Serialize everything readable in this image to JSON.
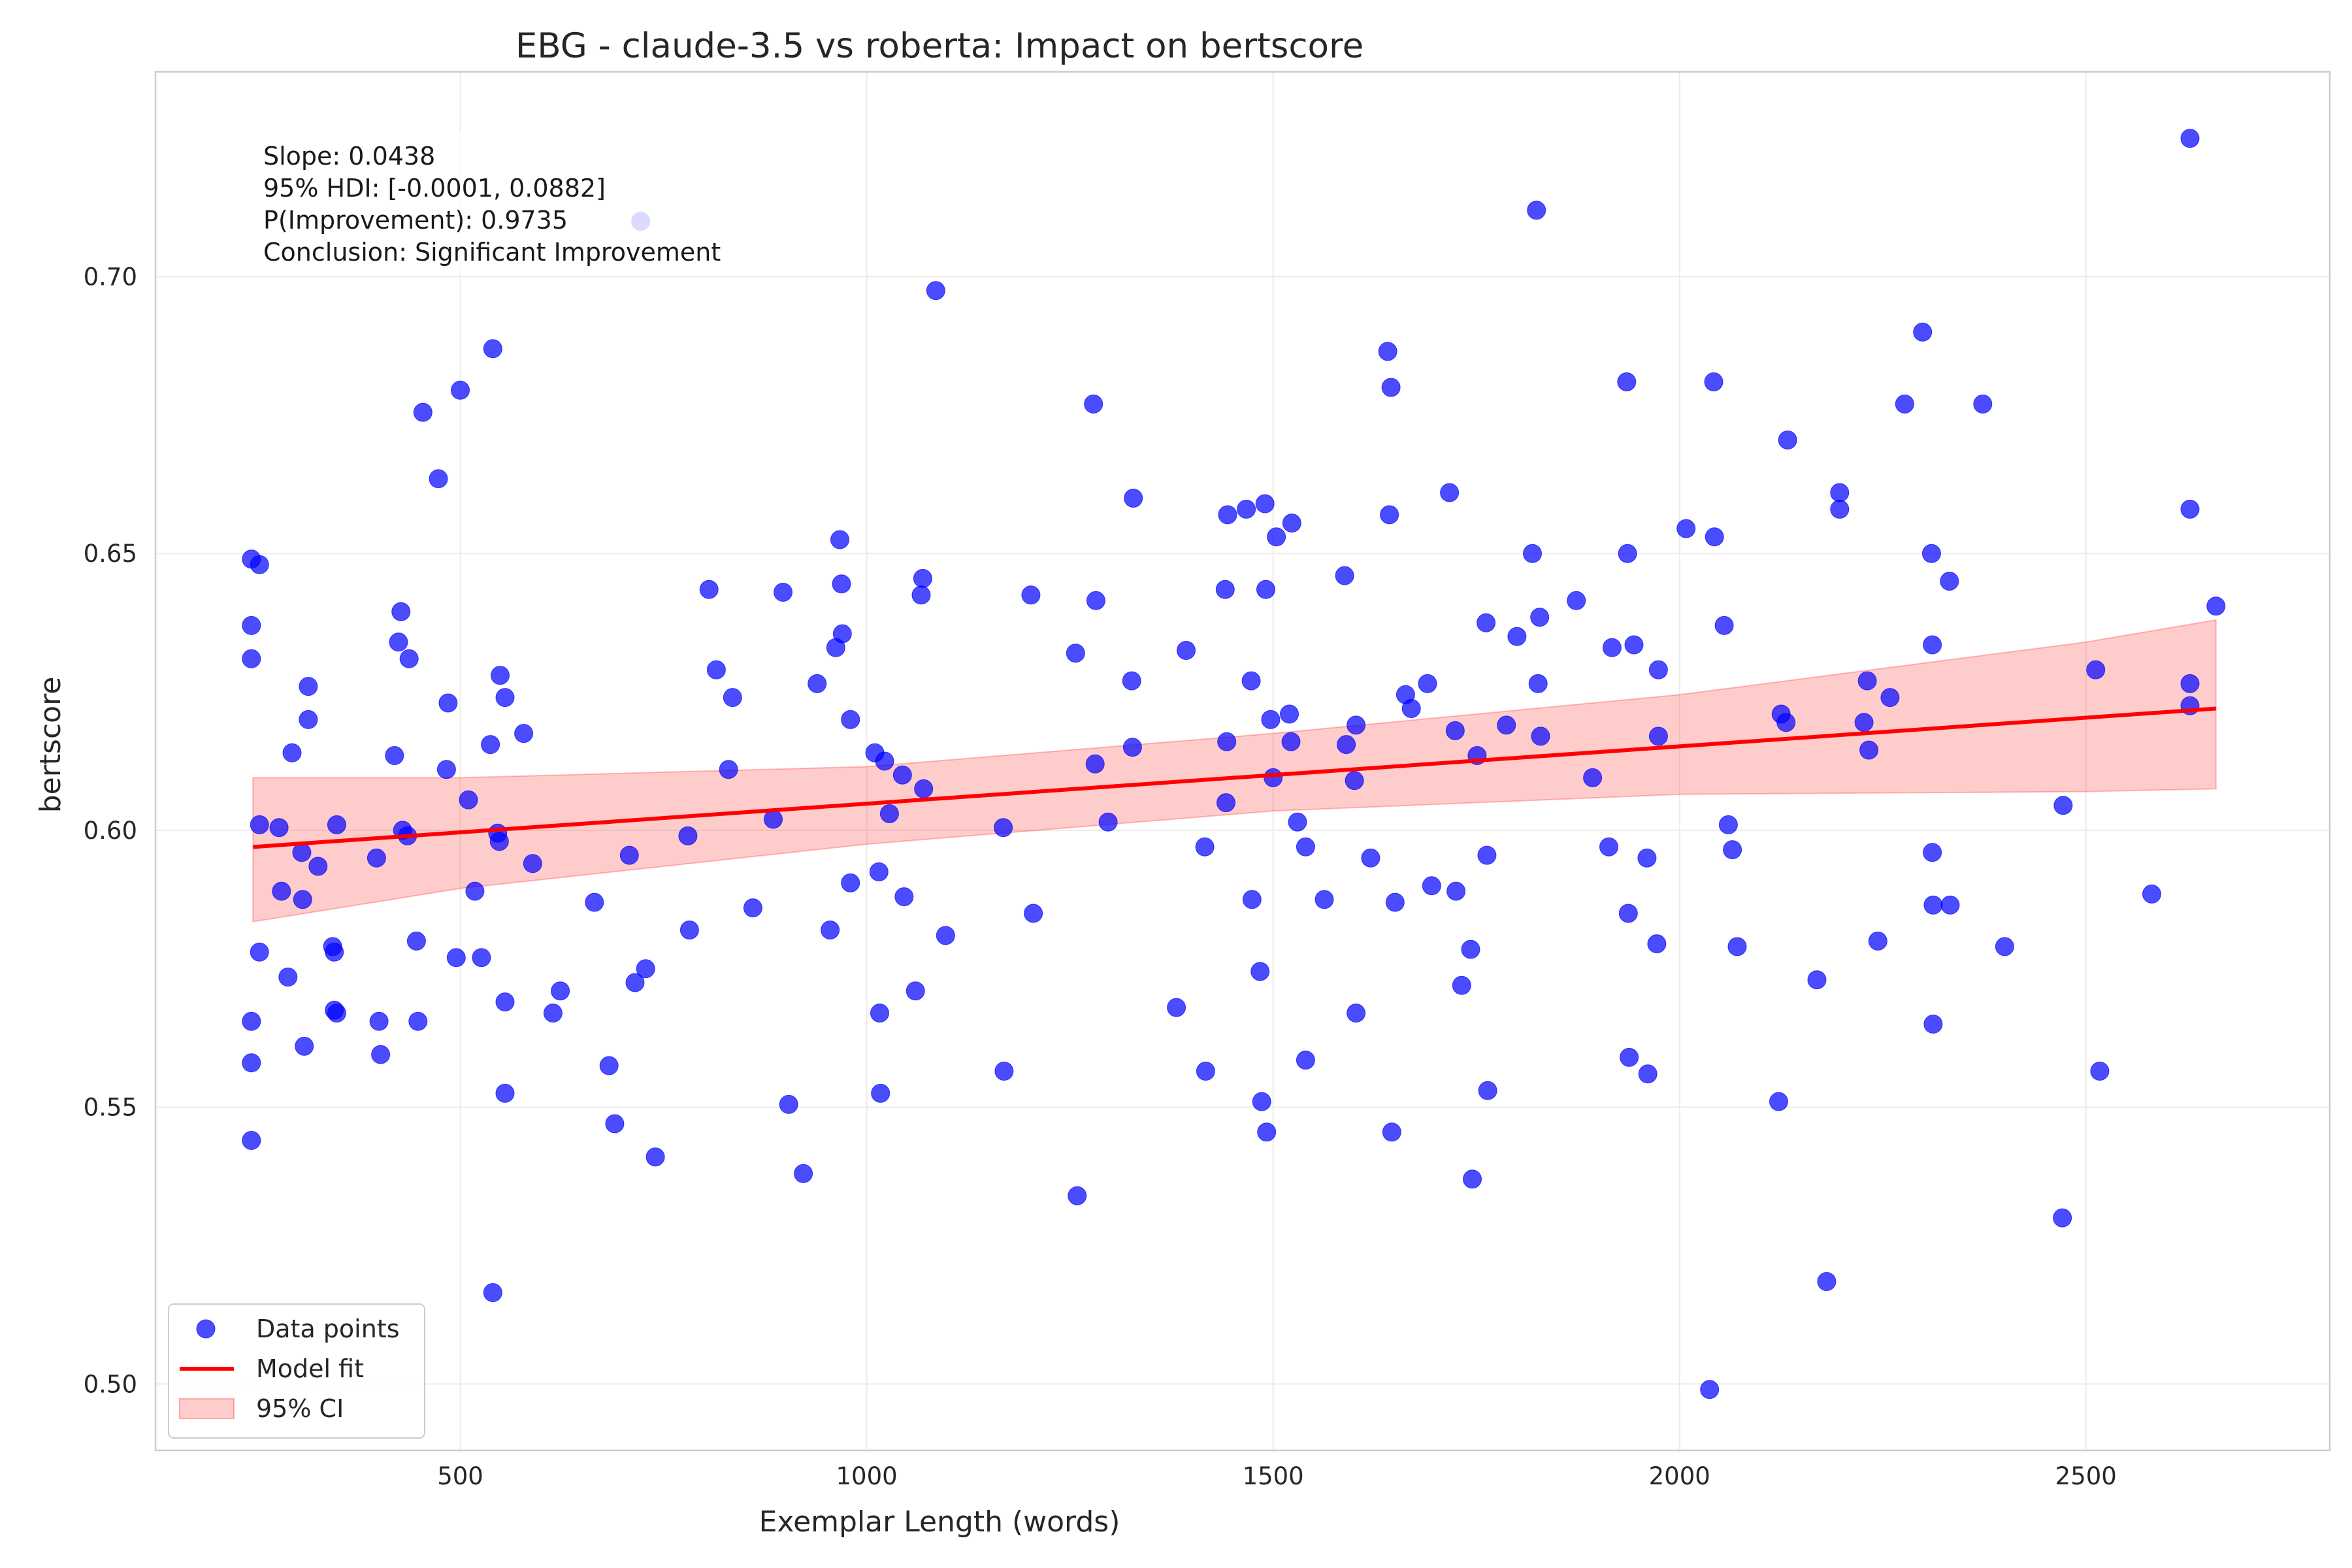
{
  "chart_data": {
    "type": "scatter",
    "title": "EBG - claude-3.5 vs roberta: Impact on bertscore",
    "xlabel": "Exemplar Length (words)",
    "ylabel": "bertscore",
    "xlim": [
      125,
      2800
    ],
    "ylim": [
      0.488,
      0.737
    ],
    "xticks": [
      500,
      1000,
      1500,
      2000,
      2500
    ],
    "yticks": [
      0.5,
      0.55,
      0.6,
      0.65,
      0.7
    ],
    "xtick_labels": [
      "500",
      "1000",
      "1500",
      "2000",
      "2500"
    ],
    "ytick_labels": [
      "0.50",
      "0.55",
      "0.60",
      "0.65",
      "0.70"
    ],
    "grid": true,
    "annotation": {
      "lines": [
        "Slope: 0.0438",
        "95% HDI: [-0.0001, 0.0882]",
        "P(Improvement): 0.9735",
        "Conclusion: Significant Improvement"
      ]
    },
    "legend": {
      "placement": "lower-left",
      "entries": [
        "Data points",
        "Model fit",
        "95% CI"
      ]
    },
    "colors": {
      "points": "#0000ff",
      "fit": "#ff0000",
      "ci": "#ff0000"
    },
    "model_fit": {
      "x": [
        245,
        2660
      ],
      "y": [
        0.597,
        0.622
      ]
    },
    "ci_band": {
      "x": [
        245,
        500,
        1000,
        1500,
        2000,
        2500,
        2660
      ],
      "lower": [
        0.5835,
        0.5895,
        0.5975,
        0.6035,
        0.6065,
        0.607,
        0.6075
      ],
      "upper": [
        0.6095,
        0.6095,
        0.6115,
        0.6175,
        0.6245,
        0.634,
        0.638
      ]
    },
    "series": [
      {
        "name": "Data points",
        "points": [
          [
            243,
            0.649
          ],
          [
            243,
            0.637
          ],
          [
            243,
            0.631
          ],
          [
            243,
            0.5655
          ],
          [
            243,
            0.558
          ],
          [
            243,
            0.544
          ],
          [
            253,
            0.648
          ],
          [
            253,
            0.601
          ],
          [
            253,
            0.578
          ],
          [
            277,
            0.6005
          ],
          [
            280,
            0.589
          ],
          [
            288,
            0.5735
          ],
          [
            293,
            0.614
          ],
          [
            305,
            0.596
          ],
          [
            306,
            0.5875
          ],
          [
            308,
            0.561
          ],
          [
            313,
            0.626
          ],
          [
            313,
            0.62
          ],
          [
            325,
            0.5935
          ],
          [
            343,
            0.579
          ],
          [
            345,
            0.578
          ],
          [
            345,
            0.5675
          ],
          [
            348,
            0.601
          ],
          [
            348,
            0.567
          ],
          [
            397,
            0.595
          ],
          [
            400,
            0.5655
          ],
          [
            402,
            0.5595
          ],
          [
            419,
            0.6135
          ],
          [
            424,
            0.634
          ],
          [
            427,
            0.6395
          ],
          [
            429,
            0.6
          ],
          [
            435,
            0.599
          ],
          [
            437,
            0.631
          ],
          [
            446,
            0.58
          ],
          [
            448,
            0.5655
          ],
          [
            454,
            0.6755
          ],
          [
            473,
            0.6635
          ],
          [
            483,
            0.611
          ],
          [
            485,
            0.623
          ],
          [
            495,
            0.577
          ],
          [
            500,
            0.6795
          ],
          [
            510,
            0.6055
          ],
          [
            518,
            0.589
          ],
          [
            526,
            0.577
          ],
          [
            537,
            0.6155
          ],
          [
            540,
            0.687
          ],
          [
            540,
            0.5165
          ],
          [
            546,
            0.5995
          ],
          [
            548,
            0.598
          ],
          [
            549,
            0.628
          ],
          [
            555,
            0.624
          ],
          [
            555,
            0.569
          ],
          [
            555,
            0.5525
          ],
          [
            578,
            0.6175
          ],
          [
            589,
            0.594
          ],
          [
            614,
            0.567
          ],
          [
            623,
            0.571
          ],
          [
            665,
            0.587
          ],
          [
            683,
            0.5575
          ],
          [
            690,
            0.547
          ],
          [
            708,
            0.5955
          ],
          [
            715,
            0.5725
          ],
          [
            722,
            0.71
          ],
          [
            728,
            0.575
          ],
          [
            740,
            0.541
          ],
          [
            780,
            0.599
          ],
          [
            782,
            0.582
          ],
          [
            806,
            0.6435
          ],
          [
            815,
            0.629
          ],
          [
            830,
            0.611
          ],
          [
            835,
            0.624
          ],
          [
            860,
            0.586
          ],
          [
            885,
            0.602
          ],
          [
            897,
            0.643
          ],
          [
            904,
            0.5505
          ],
          [
            922,
            0.538
          ],
          [
            939,
            0.6265
          ],
          [
            955,
            0.582
          ],
          [
            962,
            0.633
          ],
          [
            967,
            0.6525
          ],
          [
            969,
            0.6445
          ],
          [
            970,
            0.6355
          ],
          [
            980,
            0.62
          ],
          [
            980,
            0.5905
          ],
          [
            1010,
            0.614
          ],
          [
            1015,
            0.5925
          ],
          [
            1016,
            0.567
          ],
          [
            1017,
            0.5525
          ],
          [
            1022,
            0.6125
          ],
          [
            1028,
            0.603
          ],
          [
            1044,
            0.61
          ],
          [
            1046,
            0.588
          ],
          [
            1060,
            0.571
          ],
          [
            1067,
            0.6425
          ],
          [
            1069,
            0.6455
          ],
          [
            1070,
            0.6075
          ],
          [
            1085,
            0.6975
          ],
          [
            1097,
            0.581
          ],
          [
            1168,
            0.6005
          ],
          [
            1169,
            0.5565
          ],
          [
            1202,
            0.6425
          ],
          [
            1205,
            0.585
          ],
          [
            1257,
            0.632
          ],
          [
            1259,
            0.534
          ],
          [
            1279,
            0.677
          ],
          [
            1281,
            0.612
          ],
          [
            1282,
            0.6415
          ],
          [
            1297,
            0.6015
          ],
          [
            1326,
            0.627
          ],
          [
            1327,
            0.615
          ],
          [
            1328,
            0.66
          ],
          [
            1381,
            0.568
          ],
          [
            1393,
            0.6325
          ],
          [
            1416,
            0.597
          ],
          [
            1417,
            0.5565
          ],
          [
            1441,
            0.6435
          ],
          [
            1442,
            0.605
          ],
          [
            1443,
            0.616
          ],
          [
            1444,
            0.657
          ],
          [
            1467,
            0.658
          ],
          [
            1473,
            0.627
          ],
          [
            1474,
            0.5875
          ],
          [
            1484,
            0.5745
          ],
          [
            1486,
            0.551
          ],
          [
            1490,
            0.659
          ],
          [
            1491,
            0.6435
          ],
          [
            1492,
            0.5455
          ],
          [
            1497,
            0.62
          ],
          [
            1500,
            0.6095
          ],
          [
            1504,
            0.653
          ],
          [
            1520,
            0.621
          ],
          [
            1522,
            0.616
          ],
          [
            1523,
            0.6555
          ],
          [
            1530,
            0.6015
          ],
          [
            1540,
            0.597
          ],
          [
            1540,
            0.5585
          ],
          [
            1563,
            0.5875
          ],
          [
            1588,
            0.646
          ],
          [
            1590,
            0.6155
          ],
          [
            1600,
            0.609
          ],
          [
            1602,
            0.619
          ],
          [
            1602,
            0.567
          ],
          [
            1620,
            0.595
          ],
          [
            1641,
            0.6865
          ],
          [
            1643,
            0.657
          ],
          [
            1645,
            0.68
          ],
          [
            1646,
            0.5455
          ],
          [
            1650,
            0.587
          ],
          [
            1663,
            0.6245
          ],
          [
            1670,
            0.622
          ],
          [
            1690,
            0.6265
          ],
          [
            1695,
            0.59
          ],
          [
            1717,
            0.661
          ],
          [
            1724,
            0.618
          ],
          [
            1725,
            0.589
          ],
          [
            1732,
            0.572
          ],
          [
            1743,
            0.5785
          ],
          [
            1745,
            0.537
          ],
          [
            1751,
            0.6135
          ],
          [
            1762,
            0.6375
          ],
          [
            1763,
            0.5955
          ],
          [
            1764,
            0.553
          ],
          [
            1787,
            0.619
          ],
          [
            1800,
            0.635
          ],
          [
            1819,
            0.65
          ],
          [
            1824,
            0.712
          ],
          [
            1826,
            0.6265
          ],
          [
            1828,
            0.6385
          ],
          [
            1829,
            0.617
          ],
          [
            1873,
            0.6415
          ],
          [
            1893,
            0.6095
          ],
          [
            1913,
            0.597
          ],
          [
            1917,
            0.633
          ],
          [
            1935,
            0.681
          ],
          [
            1936,
            0.65
          ],
          [
            1937,
            0.585
          ],
          [
            1938,
            0.559
          ],
          [
            1944,
            0.6335
          ],
          [
            1960,
            0.595
          ],
          [
            1961,
            0.556
          ],
          [
            1972,
            0.5795
          ],
          [
            1974,
            0.629
          ],
          [
            1974,
            0.617
          ],
          [
            2008,
            0.6545
          ],
          [
            2037,
            0.499
          ],
          [
            2042,
            0.681
          ],
          [
            2043,
            0.653
          ],
          [
            2055,
            0.637
          ],
          [
            2060,
            0.601
          ],
          [
            2065,
            0.5965
          ],
          [
            2071,
            0.579
          ],
          [
            2122,
            0.551
          ],
          [
            2125,
            0.621
          ],
          [
            2131,
            0.6195
          ],
          [
            2133,
            0.6705
          ],
          [
            2169,
            0.573
          ],
          [
            2181,
            0.5185
          ],
          [
            2197,
            0.661
          ],
          [
            2197,
            0.658
          ],
          [
            2227,
            0.6195
          ],
          [
            2231,
            0.627
          ],
          [
            2233,
            0.6145
          ],
          [
            2244,
            0.58
          ],
          [
            2259,
            0.624
          ],
          [
            2277,
            0.677
          ],
          [
            2299,
            0.69
          ],
          [
            2310,
            0.65
          ],
          [
            2311,
            0.6335
          ],
          [
            2311,
            0.596
          ],
          [
            2312,
            0.5865
          ],
          [
            2312,
            0.565
          ],
          [
            2332,
            0.645
          ],
          [
            2333,
            0.5865
          ],
          [
            2373,
            0.677
          ],
          [
            2400,
            0.579
          ],
          [
            2471,
            0.53
          ],
          [
            2472,
            0.6045
          ],
          [
            2512,
            0.629
          ],
          [
            2517,
            0.5565
          ],
          [
            2581,
            0.5885
          ],
          [
            2628,
            0.725
          ],
          [
            2628,
            0.658
          ],
          [
            2628,
            0.6265
          ],
          [
            2628,
            0.6225
          ],
          [
            2660,
            0.6405
          ]
        ]
      }
    ]
  }
}
